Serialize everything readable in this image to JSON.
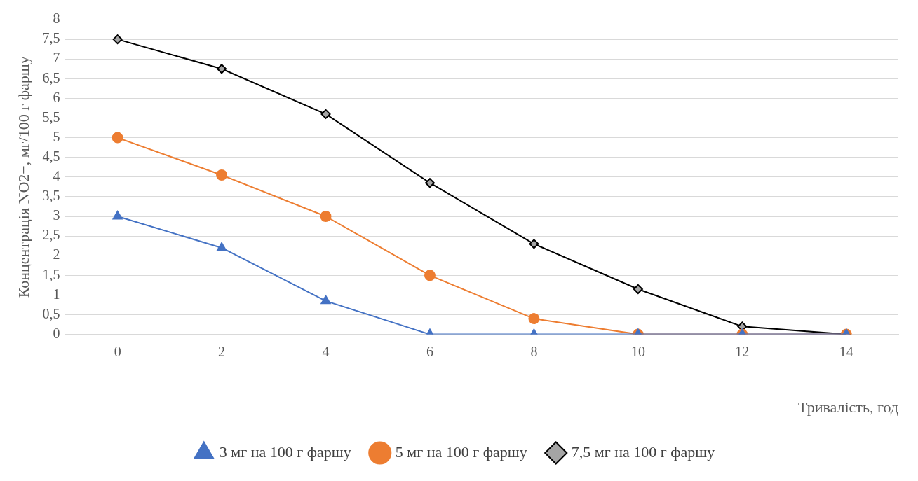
{
  "chart_data": {
    "type": "line",
    "xlabel": "Тривалість, год",
    "ylabel": "Концентрація NO2−, мг/100 г фаршу",
    "categories": [
      "0",
      "2",
      "4",
      "6",
      "8",
      "10",
      "12",
      "14"
    ],
    "series": [
      {
        "name": "3 мг на 100 г фаршу",
        "color": "#4472c4",
        "marker": "triangle",
        "values": [
          3,
          2.2,
          0.85,
          0,
          0,
          0,
          0,
          0
        ]
      },
      {
        "name": "5 мг на 100 г фаршу",
        "color": "#ed7d31",
        "marker": "circle",
        "values": [
          5,
          4.05,
          3,
          1.5,
          0.4,
          0,
          0,
          0
        ]
      },
      {
        "name": "7,5 мг на 100 г фаршу",
        "color": "#000000",
        "marker": "diamond",
        "values": [
          7.5,
          6.75,
          5.6,
          3.85,
          2.3,
          1.15,
          0.2,
          0
        ]
      }
    ],
    "ylim": [
      0,
      8
    ],
    "yticks": [
      0,
      {
        "value": 0.5,
        "label": "0,5"
      },
      1,
      {
        "value": 1.5,
        "label": "1,5"
      },
      2,
      {
        "value": 2.5,
        "label": "2,5"
      },
      3,
      {
        "value": 3.5,
        "label": "3,5"
      },
      4,
      {
        "value": 4.5,
        "label": "4,5"
      },
      5,
      {
        "value": 5.5,
        "label": "5,5"
      },
      6,
      {
        "value": 6.5,
        "label": "6,5"
      },
      7,
      {
        "value": 7.5,
        "label": "7,5"
      },
      8
    ],
    "grid": "y",
    "legend": "bottom",
    "line_style": "solid"
  }
}
